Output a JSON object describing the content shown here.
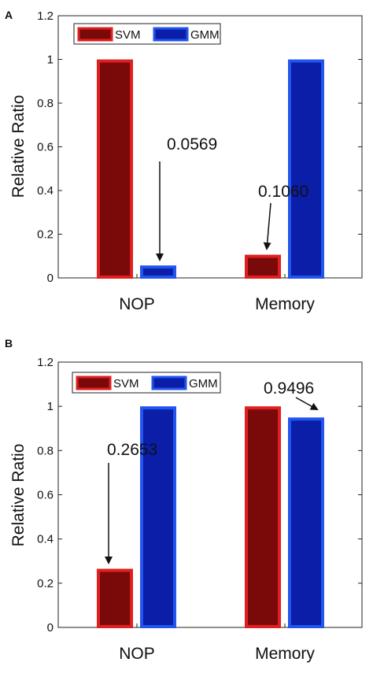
{
  "colors": {
    "svm_fill": "#7a0a0a",
    "svm_edge": "#e02020",
    "gmm_fill": "#0a1ea8",
    "gmm_edge": "#2255ee"
  },
  "chart_data": [
    {
      "panel_label": "A",
      "type": "bar",
      "ylabel": "Relative Ratio",
      "ylim": [
        0,
        1.2
      ],
      "yticks": [
        "0",
        "0.2",
        "0.4",
        "0.6",
        "0.8",
        "1",
        "1.2"
      ],
      "categories": [
        "NOP",
        "Memory"
      ],
      "legend_position": "top-left",
      "series": [
        {
          "name": "SVM",
          "values": [
            1.0,
            0.106
          ]
        },
        {
          "name": "GMM",
          "values": [
            0.0569,
            1.0
          ]
        }
      ],
      "annotations": [
        {
          "text": "0.0569",
          "category": 0,
          "series": 1
        },
        {
          "text": "0.1060",
          "category": 1,
          "series": 0
        }
      ]
    },
    {
      "panel_label": "B",
      "type": "bar",
      "ylabel": "Relative Ratio",
      "ylim": [
        0,
        1.2
      ],
      "yticks": [
        "0",
        "0.2",
        "0.4",
        "0.6",
        "0.8",
        "1",
        "1.2"
      ],
      "categories": [
        "NOP",
        "Memory"
      ],
      "legend_position": "top-left",
      "series": [
        {
          "name": "SVM",
          "values": [
            0.2653,
            1.0
          ]
        },
        {
          "name": "GMM",
          "values": [
            1.0,
            0.9496
          ]
        }
      ],
      "annotations": [
        {
          "text": "0.2653",
          "category": 0,
          "series": 0
        },
        {
          "text": "0.9496",
          "category": 1,
          "series": 1
        }
      ]
    }
  ]
}
